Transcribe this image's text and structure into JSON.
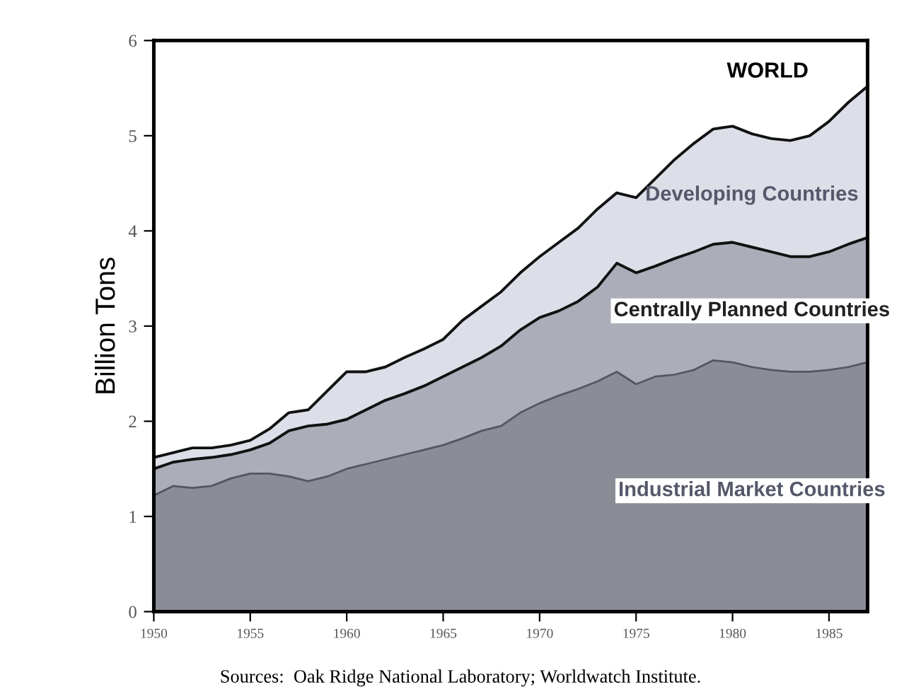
{
  "chart_data": {
    "type": "area",
    "stacked": true,
    "ylabel": "Billion Tons",
    "x": [
      1950,
      1951,
      1952,
      1953,
      1954,
      1955,
      1956,
      1957,
      1958,
      1959,
      1960,
      1961,
      1962,
      1963,
      1964,
      1965,
      1966,
      1967,
      1968,
      1969,
      1970,
      1971,
      1972,
      1973,
      1974,
      1975,
      1976,
      1977,
      1978,
      1979,
      1980,
      1981,
      1982,
      1983,
      1984,
      1985,
      1986,
      1987
    ],
    "series": [
      {
        "name": "Industrial Market Countries",
        "color": "#8a8c96",
        "values": [
          1.22,
          1.32,
          1.3,
          1.32,
          1.4,
          1.45,
          1.45,
          1.42,
          1.37,
          1.42,
          1.5,
          1.55,
          1.6,
          1.65,
          1.7,
          1.75,
          1.82,
          1.9,
          1.95,
          2.09,
          2.19,
          2.27,
          2.34,
          2.42,
          2.52,
          2.39,
          2.47,
          2.49,
          2.54,
          2.64,
          2.62,
          2.57,
          2.54,
          2.52,
          2.52,
          2.54,
          2.57,
          2.62
        ]
      },
      {
        "name": "Centrally Planned Countries",
        "color": "#abadb9",
        "values": [
          0.28,
          0.25,
          0.3,
          0.3,
          0.25,
          0.25,
          0.32,
          0.48,
          0.58,
          0.55,
          0.52,
          0.57,
          0.62,
          0.64,
          0.67,
          0.72,
          0.75,
          0.77,
          0.84,
          0.87,
          0.9,
          0.89,
          0.92,
          0.99,
          1.14,
          1.17,
          1.16,
          1.22,
          1.24,
          1.22,
          1.26,
          1.26,
          1.24,
          1.21,
          1.21,
          1.24,
          1.29,
          1.31
        ]
      },
      {
        "name": "Developing Countries",
        "color": "#dcdfe8",
        "values": [
          0.12,
          0.1,
          0.12,
          0.1,
          0.1,
          0.1,
          0.15,
          0.19,
          0.17,
          0.35,
          0.5,
          0.4,
          0.35,
          0.38,
          0.39,
          0.39,
          0.49,
          0.54,
          0.57,
          0.6,
          0.64,
          0.72,
          0.77,
          0.82,
          0.74,
          0.79,
          0.92,
          1.04,
          1.14,
          1.21,
          1.22,
          1.19,
          1.19,
          1.22,
          1.27,
          1.37,
          1.49,
          1.59
        ]
      }
    ],
    "xlim": [
      1950,
      1987
    ],
    "ylim": [
      0,
      6
    ],
    "xticks": [
      1950,
      1955,
      1960,
      1965,
      1970,
      1975,
      1980,
      1985
    ],
    "yticks": [
      0,
      1,
      2,
      3,
      4,
      5,
      6
    ],
    "annotations": [
      "WORLD",
      "Sources:  Oak Ridge National Laboratory; Worldwatch Institute."
    ]
  }
}
